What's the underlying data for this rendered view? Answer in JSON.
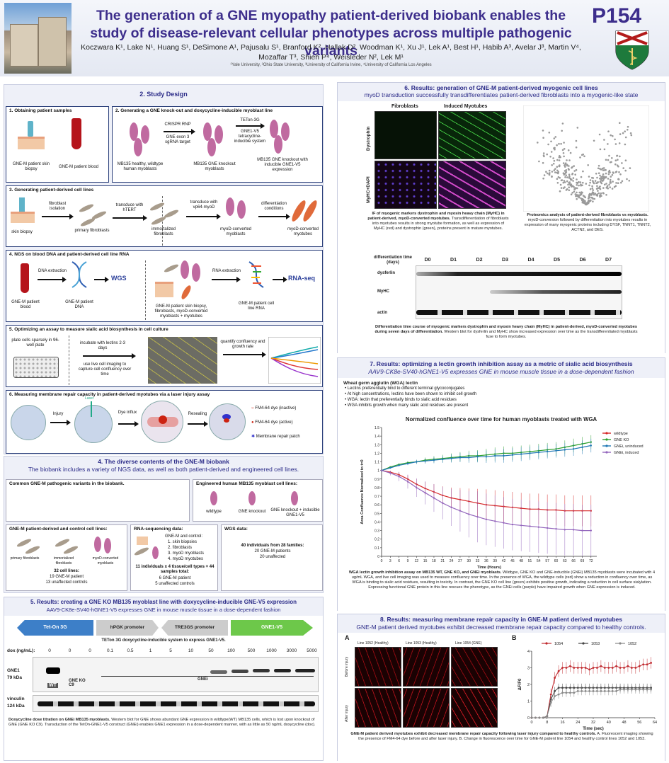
{
  "header": {
    "title": "The generation of a GNE myopathy patient-derived biobank enables the study of disease-relevant cellular phenotypes across multiple pathogenic variants",
    "authors": "Koczwara K¹, Lake N¹, Huang S¹, DeSimone A¹, Pajusalu S¹, Branford K², Hallak D², Woodman K¹, Xu J¹, Lek A¹, Best H¹, Habib A³, Avelar J³, Martin V⁴, Mozaffar T³, Shieh P⁴, Weisleder N², Lek M¹",
    "affiliations": "¹Yale University, ²Ohio State University, ³University of California Irvine, ⁴University of California Los Angeles",
    "poster_number": "P154"
  },
  "s2": {
    "title": "2. Study Design",
    "b1": {
      "title": "1.   Obtaining patient samples",
      "skin": "GNE-M patient skin biopsy",
      "blood": "GNE-M patient blood"
    },
    "b2": {
      "title": "2. Generating a GNE knock-out and doxycycline-inducible myoblast line",
      "c1": "MB135 healthy, wildtype human myoblasts",
      "a1": "CRISPR RNP",
      "a1b": "GNE exon 3 sgRNA target",
      "c2": "MB135 GNE knockout myoblasts",
      "a2": "TETon-3G",
      "a2b": "GNE1-V5 tetracycline-inducible system",
      "c3": "MB135 GNE knockout with inducible GNE1-V5 expression"
    },
    "b3": {
      "title": "3. Generating patient-derived cell lines",
      "c1": "skin biopsy",
      "a1": "fibroblast isolation",
      "c2": "primary fibroblasts",
      "a2": "transduce with hTERT",
      "c3": "immortalized fibroblasts",
      "a3": "transduce with vp64-myoD",
      "c4": "myoD-converted myoblasts",
      "a4": "differentiation conditions",
      "c5": "myoD-converted myotubes"
    },
    "b4": {
      "title": "4. NGS on blood DNA and patient-derived cell line RNA",
      "c1": "GNE-M patient blood",
      "a1": "DNA extraction",
      "c2": "GNE-M patient DNA",
      "wgs": "WGS",
      "c3": "GNE-M patient skin biopsy, fibroblasts, myoD-converted myoblasts + myotubes",
      "a3": "RNA extraction",
      "c4": "GNE-M patient cell line RNA",
      "rna": "RNA-seq"
    },
    "b5": {
      "title": "5. Optimizing an assay to measure sialic acid biosynthesis in cell culture",
      "c1": "plate cells sparsely in 96-well plate",
      "a1": "incubate with lectins 2-3 days",
      "a2": "use live cell imaging to capture cell confluency over time",
      "a3": "quantify confluency and growth rate"
    },
    "b6": {
      "title": "6. Measuring membrane repair capacity in patient-derived myotubes via a laser injury assay",
      "laser": "Laser",
      "injury": "Injury",
      "dye": "Dye influx",
      "reseal": "Resealing",
      "l1": "FM4-64 dye (inactive)",
      "l2": "FM4-64 dye (active)",
      "l3": "Membrane repair patch"
    }
  },
  "s4": {
    "title": "4. The diverse contents of the GNE-M biobank",
    "sub": "The biobank includes a variety of NGS data, as well as both patient-derived and engineered cell lines.",
    "common": "Common GNE-M pathogenic variants in the biobank.",
    "eng": {
      "title": "Engineered human MB135 myoblast cell lines:",
      "a": "wildtype",
      "b": "GNE knockout",
      "c": "GNE knockout + inducible GNE1-V5"
    },
    "pd": {
      "title": "GNE-M patient-derived and control cell lines:",
      "a": "primary fibroblasts",
      "b": "immortalized fibroblasts",
      "c": "myoD-converted myoblasts",
      "n1": "32 cell lines:",
      "n2": "19 GNE-M patient",
      "n3": "13 unaffected controls"
    },
    "rna": {
      "title": "RNA-sequencing data:",
      "h": "GNE-M and control:",
      "i1": "1.  skin biopsies",
      "i2": "2.  fibroblasts",
      "i3": "3.  myoD myoblasts",
      "i4": "4.  myoD myotubes",
      "n1": "11 individuals x 4 tissue/cell types = 44 samples total:",
      "n2": "6 GNE-M patient",
      "n3": "5 unaffected controls"
    },
    "wgs": {
      "title": "WGS data:",
      "n1": "40 individuals from 28 families:",
      "n2": "20 GNE-M patients",
      "n3": "20 unaffected"
    }
  },
  "s5": {
    "title": "5. Results: creating a GNE KO MB135 myoblast line with doxycycline-inducible  GNE-V5 expression",
    "sub": "AAV9-CK8e-SV40-hGNE1-V5 expresses GNE in mouse muscle tissue in a dose-dependent fashion",
    "cons": [
      "Tet-On 3G",
      "hPGK promoter",
      "TRE3GS promoter",
      "GNE1-V5"
    ],
    "cons_cap": "TETon 3G doxycycline-inducible system to express GNE1-V5.",
    "dox_label": "dox (ng/mL):",
    "dox": [
      "0",
      "0",
      "0",
      "0.1",
      "0.5",
      "1",
      "5",
      "10",
      "50",
      "100",
      "500",
      "1000",
      "3000",
      "5000"
    ],
    "gne": "GNE1",
    "gne_kda": "79 kDa",
    "vin": "vinculin",
    "vin_kda": "124 kDa",
    "wt": "WT",
    "ko": "GNE KO C9",
    "gnei": "GNEi",
    "cap_b": "Doxycycline dose titration on GNEi MB135 myoblasts.",
    "cap": "Western blot for GNE shows abundant GNE expression in wildtype(WT) MB135 cells, which is lost upon knockout of GNE (GNE KO C9). Transduction of the TetOn-GNE1-V5 construct (GNEi) enables GNE1 expression in a dose-dependent manner, with as little as 50 ng/mL doxycycline (dox)."
  },
  "s6": {
    "title": "6. Results: generation of GNE-M patient-derived myogenic cell lines",
    "sub": "myoD transduction successfully transdifferentiates patient-derived fibroblasts into a myogenic-like state",
    "col1": "Fibroblasts",
    "col2": "Induced Myotubes",
    "row1": "Dystrophin",
    "row2": "MyHC+DAPI",
    "if_cap_b": "IF of myogenic markers dystrophin and myosin heavy chain (MyHC) in patient-derived, myoD-converted myotubes.",
    "if_cap": "Transdifferentiation of fibroblasts into myotubes results in strong myotube formation, as well as expression of MyHC (red) and dystrophin (green), proteins present in mature myotubes.",
    "prot_cap_b": "Proteomics analysis of patient-derived fibroblasts vs myoblasts.",
    "prot_cap": "myoD-conversion followed by differentiation into myotubes results in expression of many myogenic proteins including DYSF, TNNT1, TNNT2, ACTN2, and DES.",
    "tc_label": "differentiation time (days)",
    "days": [
      "D0",
      "D1",
      "D2",
      "D3",
      "D4",
      "D5",
      "D6",
      "D7"
    ],
    "rows": [
      "dysferlin",
      "MyHC",
      "actin"
    ],
    "wb_cap_b": "Differentiation time course of myogenic markers dystrophin and myosin heavy chain (MyHC) in patient-derived, myoD-converted myotubes during seven days of differentiation.",
    "wb_cap": "Western blot for dysferlin and MyHC show increased expression over time as the transdifferentiated myoblasts fuse to form myotubes."
  },
  "s7": {
    "title": "7. Results: optimizing a lectin growth inhibition assay as a metric of sialic acid biosynthesis",
    "sub": "AAV9-CK8e-SV40-hGNE1-V5 expresses GNE in mouse muscle tissue in a dose-dependent fashion",
    "wga_h": "Wheat germ agglutin (WGA) lectin",
    "bullets": [
      "Lectins preferentially bind to different terminal glycoconjugates",
      "At high concentrations, lectins have been shown to inhibit cell growth",
      "WGA: lectin that preferentially binds to sialic acid residues",
      "WGA inhibits growth when many sialic acid residues are present"
    ],
    "cap_b": "WGA lectin growth inhibition assay on MB135 WT, GNE KO, and GNEi myoblasts.",
    "cap": "Wildtype, GNE KO and GNE-inducible (GNEi) MB135 myoblasts were incubated with 4 ug/mL WGA, and live cell imaging was used to measure confluency over time. In the presence of WGA, the wildtype cells (red) show a reduction in confluency over time, as WGA is binding to sialic acid residues, resulting in toxicity. In contrast, the GNE KO cell line (green) exhibits positive growth, indicating a reduction in cell surface sialylation. Expressing functional GNE protein in this line rescues the phenotype, as the GNEi cells (purple) have impaired growth when GNE expression is induced."
  },
  "s8": {
    "title": "8. Results: measuring membrane repair capacity in GNE-M patient derived myotubes",
    "sub": "GNE-M patient derived myotubes exhibit decreased membrane repair capacity compared to healthy controls.",
    "pA": "A",
    "pB": "B",
    "lines": [
      "Line 1052 (Healthy)",
      "Line 1053 (Healthy)",
      "Line 1054 (GNE)"
    ],
    "before": "Before injury",
    "after": "After injury",
    "cap_b": "GNE-M patient derived myotubes exhibit decreased membrane repair capacity following laser injury compared to healthy controls.",
    "cap": "A. Fluorescent imaging showing the presence of FM4-64 dye before and after laser injury. B. Change in fluorescence over time for GNE-M patient line 1054 and healthy control lines 1052 and 1053."
  },
  "chart_data": [
    {
      "type": "line",
      "title": "Normalized confluence over time for human myoblasts treated with WGA",
      "xlabel": "Time (Hours)",
      "ylabel": "Area Confluence Normalized to t=0",
      "xlim": [
        0,
        74
      ],
      "ylim": [
        0,
        1.5
      ],
      "xticks": [
        0,
        3,
        6,
        9,
        12,
        15,
        18,
        21,
        24,
        27,
        30,
        33,
        36,
        39,
        42,
        45,
        48,
        51,
        54,
        57,
        60,
        63,
        66,
        69,
        72
      ],
      "yticks": [
        0,
        0.1,
        0.2,
        0.3,
        0.4,
        0.5,
        0.6,
        0.7,
        0.8,
        0.9,
        1,
        1.1,
        1.2,
        1.3,
        1.4,
        1.5
      ],
      "legend_position": "top-right",
      "series": [
        {
          "name": "wildtype",
          "color": "#d62728",
          "x": [
            0,
            3,
            6,
            9,
            12,
            15,
            18,
            21,
            24,
            27,
            30,
            33,
            36,
            39,
            42,
            45,
            48,
            51,
            54,
            57,
            60,
            63,
            66,
            69,
            72
          ],
          "y": [
            1.0,
            0.98,
            0.95,
            0.9,
            0.84,
            0.79,
            0.75,
            0.71,
            0.68,
            0.66,
            0.64,
            0.62,
            0.6,
            0.59,
            0.58,
            0.57,
            0.56,
            0.55,
            0.55,
            0.54,
            0.54,
            0.53,
            0.53,
            0.53,
            0.53
          ]
        },
        {
          "name": "GNE KO",
          "color": "#2ca02c",
          "x": [
            0,
            3,
            6,
            9,
            12,
            15,
            18,
            21,
            24,
            27,
            30,
            33,
            36,
            39,
            42,
            45,
            48,
            51,
            54,
            57,
            60,
            63,
            66,
            69,
            72
          ],
          "y": [
            1.0,
            1.04,
            1.07,
            1.09,
            1.1,
            1.12,
            1.13,
            1.14,
            1.15,
            1.16,
            1.17,
            1.17,
            1.18,
            1.19,
            1.2,
            1.2,
            1.21,
            1.22,
            1.23,
            1.24,
            1.25,
            1.27,
            1.29,
            1.31,
            1.33
          ]
        },
        {
          "name": "GNEi, uninduced",
          "color": "#1f77b4",
          "x": [
            0,
            3,
            6,
            9,
            12,
            15,
            18,
            21,
            24,
            27,
            30,
            33,
            36,
            39,
            42,
            45,
            48,
            51,
            54,
            57,
            60,
            63,
            66,
            69,
            72
          ],
          "y": [
            1.0,
            1.03,
            1.06,
            1.08,
            1.1,
            1.11,
            1.12,
            1.13,
            1.14,
            1.15,
            1.15,
            1.16,
            1.16,
            1.17,
            1.17,
            1.18,
            1.19,
            1.2,
            1.21,
            1.22,
            1.23,
            1.24,
            1.25,
            1.27,
            1.29
          ]
        },
        {
          "name": "GNEi, induced",
          "color": "#9467bd",
          "x": [
            0,
            3,
            6,
            9,
            12,
            15,
            18,
            21,
            24,
            27,
            30,
            33,
            36,
            39,
            42,
            45,
            48,
            51,
            54,
            57,
            60,
            63,
            66,
            69,
            72
          ],
          "y": [
            1.0,
            0.97,
            0.93,
            0.87,
            0.8,
            0.74,
            0.68,
            0.62,
            0.57,
            0.53,
            0.49,
            0.46,
            0.43,
            0.41,
            0.39,
            0.37,
            0.36,
            0.35,
            0.34,
            0.33,
            0.32,
            0.31,
            0.31,
            0.3,
            0.3
          ]
        }
      ]
    },
    {
      "type": "line",
      "title": "",
      "xlabel": "Time (sec)",
      "ylabel": "ΔF/F0",
      "xlim": [
        0,
        64
      ],
      "ylim": [
        0,
        4
      ],
      "xticks": [
        0,
        8,
        16,
        24,
        32,
        40,
        48,
        56,
        64
      ],
      "yticks": [
        0,
        1,
        2,
        3,
        4
      ],
      "legend_position": "top",
      "series": [
        {
          "name": "1054",
          "color": "#c0282d",
          "x": [
            0,
            2,
            4,
            6,
            8,
            10,
            12,
            14,
            16,
            18,
            20,
            22,
            24,
            26,
            28,
            30,
            32,
            34,
            36,
            38,
            40,
            42,
            44,
            46,
            48,
            50,
            52,
            54,
            56,
            58,
            60,
            62
          ],
          "y": [
            0,
            0,
            0,
            0,
            0.1,
            1.4,
            2.4,
            2.8,
            3.0,
            3.0,
            3.1,
            3.0,
            3.0,
            3.0,
            3.0,
            2.9,
            3.0,
            3.0,
            3.1,
            3.0,
            3.0,
            3.0,
            3.1,
            3.0,
            3.0,
            3.1,
            3.0,
            3.0,
            3.1,
            3.2,
            3.2,
            3.3
          ]
        },
        {
          "name": "1053",
          "color": "#444444",
          "x": [
            0,
            2,
            4,
            6,
            8,
            10,
            12,
            14,
            16,
            18,
            20,
            22,
            24,
            26,
            28,
            30,
            32,
            34,
            36,
            38,
            40,
            42,
            44,
            46,
            48,
            50,
            52,
            54,
            56,
            58,
            60,
            62
          ],
          "y": [
            0,
            0,
            0,
            0,
            0.1,
            1.1,
            1.6,
            1.8,
            1.8,
            1.8,
            1.8,
            1.8,
            1.8,
            1.8,
            1.8,
            1.8,
            1.8,
            1.8,
            1.8,
            1.8,
            1.8,
            1.8,
            1.8,
            1.8,
            1.8,
            1.8,
            1.8,
            1.8,
            1.8,
            1.8,
            1.8,
            1.8
          ]
        },
        {
          "name": "1052",
          "color": "#888888",
          "x": [
            0,
            2,
            4,
            6,
            8,
            10,
            12,
            14,
            16,
            18,
            20,
            22,
            24,
            26,
            28,
            30,
            32,
            34,
            36,
            38,
            40,
            42,
            44,
            46,
            48,
            50,
            52,
            54,
            56,
            58,
            60,
            62
          ],
          "y": [
            0,
            0,
            0,
            0,
            0.1,
            0.9,
            1.3,
            1.4,
            1.5,
            1.5,
            1.5,
            1.5,
            1.6,
            1.6,
            1.6,
            1.6,
            1.6,
            1.6,
            1.6,
            1.6,
            1.6,
            1.6,
            1.6,
            1.7,
            1.7,
            1.7,
            1.7,
            1.7,
            1.7,
            1.7,
            1.7,
            1.7
          ]
        }
      ]
    }
  ]
}
